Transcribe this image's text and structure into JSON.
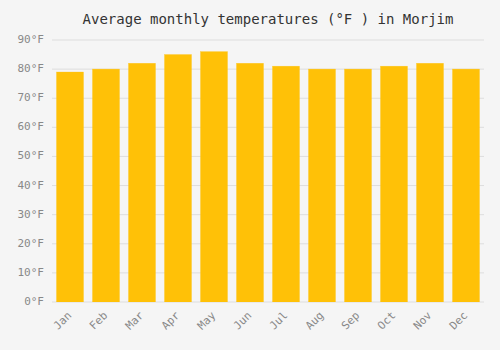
{
  "chart_data": {
    "type": "bar",
    "title": "Average monthly temperatures (°F ) in Morjim",
    "categories": [
      "Jan",
      "Feb",
      "Mar",
      "Apr",
      "May",
      "Jun",
      "Jul",
      "Aug",
      "Sep",
      "Oct",
      "Nov",
      "Dec"
    ],
    "values": [
      79,
      80,
      82,
      85,
      86,
      82,
      81,
      80,
      80,
      81,
      82,
      80
    ],
    "color": "#FFC107",
    "ylim": [
      0,
      90
    ],
    "yticks": [
      {
        "value": 0,
        "label": "0°F"
      },
      {
        "value": 10,
        "label": "10°F"
      },
      {
        "value": 20,
        "label": "20°F"
      },
      {
        "value": 30,
        "label": "30°F"
      },
      {
        "value": 40,
        "label": "40°F"
      },
      {
        "value": 50,
        "label": "50°F"
      },
      {
        "value": 60,
        "label": "60°F"
      },
      {
        "value": 70,
        "label": "70°F"
      },
      {
        "value": 80,
        "label": "80°F"
      },
      {
        "value": 90,
        "label": "90°F"
      }
    ],
    "grid": true
  }
}
